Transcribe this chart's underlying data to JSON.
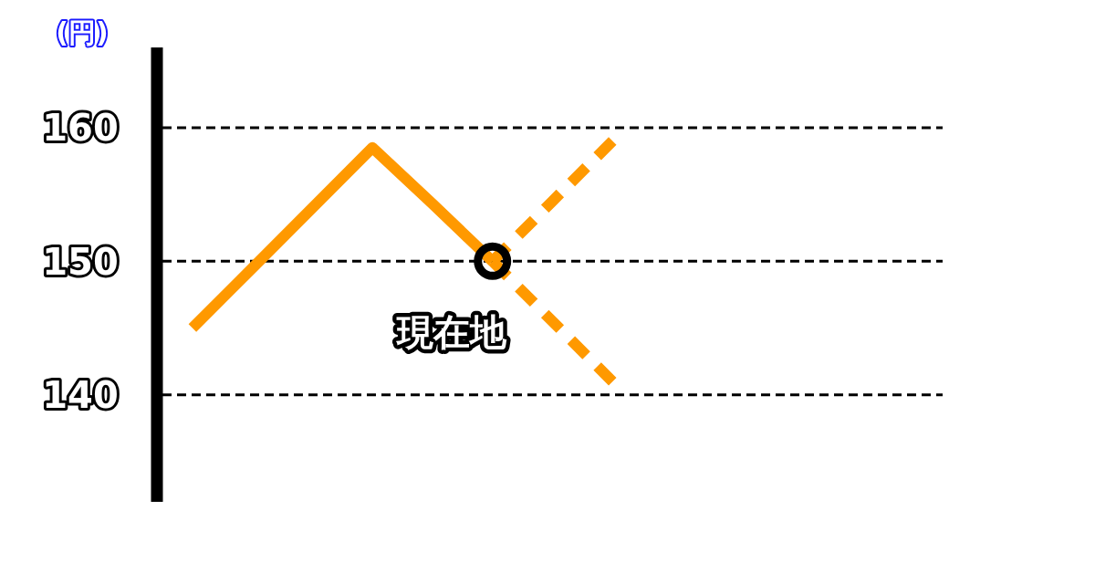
{
  "chart_data": {
    "type": "line",
    "ylabel": "(円)",
    "categories": [
      null,
      null,
      null,
      null,
      null,
      null,
      null,
      null,
      null,
      null,
      null,
      null,
      null
    ],
    "ylim": [
      132,
      166
    ],
    "yticks": [
      140,
      150,
      160
    ],
    "grid": "y",
    "series": [
      {
        "color": "#ff9900",
        "values": [
          145,
          149.5,
          154,
          158.5,
          154.3,
          150,
          null,
          null,
          null,
          null,
          null,
          null,
          null
        ]
      },
      {
        "color": "#ff9900",
        "line_style": "dashed",
        "values": [
          null,
          null,
          null,
          null,
          null,
          150,
          154.5,
          159,
          null,
          null,
          null,
          null,
          null
        ]
      },
      {
        "color": "#ff9900",
        "line_style": "dashed",
        "values": [
          null,
          null,
          null,
          null,
          null,
          150,
          145.5,
          141,
          null,
          null,
          null,
          null,
          null
        ]
      },
      {
        "type": "scatter",
        "name": "現在地",
        "color": "#000000",
        "marker": "circle",
        "values": [
          null,
          null,
          null,
          null,
          null,
          150,
          null,
          null,
          null,
          null,
          null,
          null,
          null
        ]
      }
    ]
  }
}
